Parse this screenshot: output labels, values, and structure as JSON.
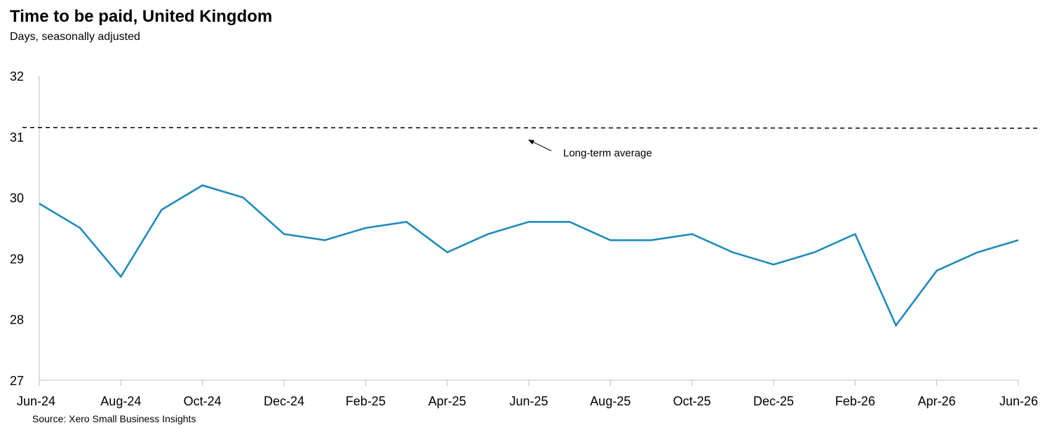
{
  "chart_data": {
    "type": "line",
    "title": "Time to be paid, United Kingdom",
    "subtitle": "Days, seasonally adjusted",
    "source": "Source: Xero Small Business Insights",
    "xlabel": "",
    "ylabel": "",
    "ylim": [
      27,
      32
    ],
    "yticks": [
      "27",
      "28",
      "29",
      "30",
      "31",
      "32"
    ],
    "xticks": [
      "Jun-24",
      "Aug-24",
      "Oct-24",
      "Dec-24",
      "Feb-25",
      "Apr-25",
      "Jun-25",
      "Aug-25",
      "Oct-25",
      "Dec-25",
      "Feb-26",
      "Apr-26",
      "Jun-26"
    ],
    "x": [
      "Jun-24",
      "Jul-24",
      "Aug-24",
      "Sep-24",
      "Oct-24",
      "Nov-24",
      "Dec-24",
      "Jan-25",
      "Feb-25",
      "Mar-25",
      "Apr-25",
      "May-25",
      "Jun-25",
      "Jul-25",
      "Aug-25",
      "Sep-25",
      "Oct-25",
      "Nov-25",
      "Dec-25",
      "Jan-26",
      "Feb-26",
      "Mar-26",
      "Apr-26",
      "May-26",
      "Jun-26"
    ],
    "series": [
      {
        "color": "#1f8bbd",
        "values": [
          29.9,
          29.5,
          28.7,
          29.8,
          30.2,
          30.0,
          29.4,
          29.3,
          29.5,
          29.6,
          29.1,
          29.4,
          29.6,
          29.6,
          29.3,
          29.3,
          29.4,
          29.1,
          28.9,
          29.1,
          29.4,
          27.9,
          28.8,
          29.1,
          29.3
        ]
      }
    ],
    "reference_line": {
      "value": 31.15,
      "style": "dashed",
      "color": "#000000"
    },
    "annotation": {
      "text": "Long-term average"
    },
    "grid": false,
    "legend": "none"
  }
}
